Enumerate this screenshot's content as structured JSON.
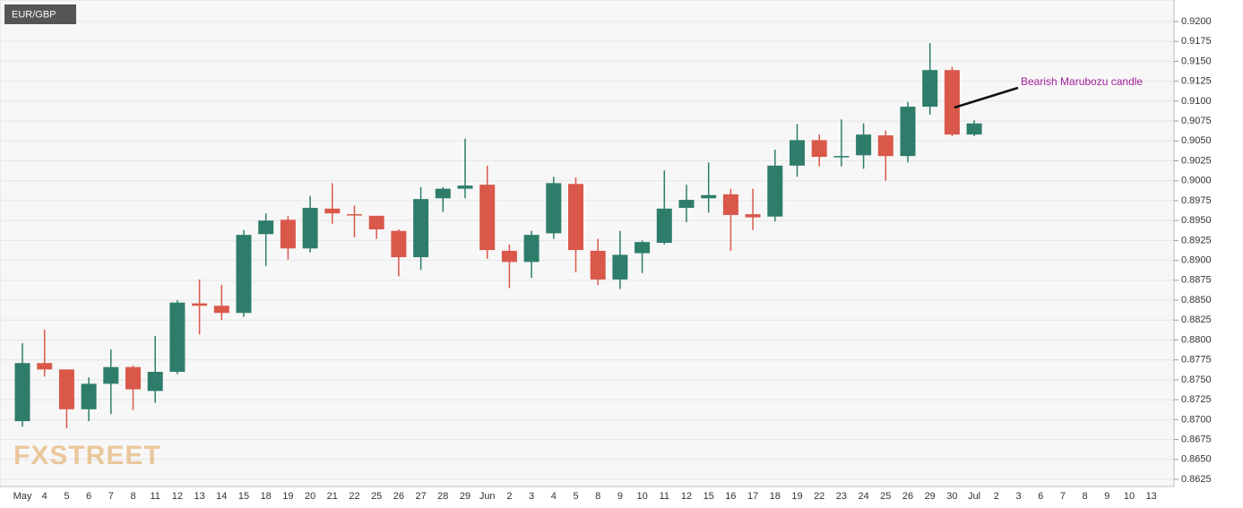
{
  "chart_data": {
    "type": "candlestick",
    "title": "EUR/GBP",
    "watermark": "FXSTREET",
    "annotation": "Bearish Marubozu candle",
    "categories": [
      "May",
      "4",
      "5",
      "6",
      "7",
      "8",
      "11",
      "12",
      "13",
      "14",
      "15",
      "18",
      "19",
      "20",
      "21",
      "22",
      "25",
      "26",
      "27",
      "28",
      "29",
      "Jun",
      "2",
      "3",
      "4",
      "5",
      "8",
      "9",
      "10",
      "11",
      "12",
      "15",
      "16",
      "17",
      "18",
      "19",
      "22",
      "23",
      "24",
      "25",
      "26",
      "29",
      "30",
      "Jul",
      "2",
      "3",
      "6",
      "7",
      "8",
      "9",
      "10",
      "13"
    ],
    "open": [
      0.8698,
      0.8771,
      0.8763,
      0.8713,
      0.8745,
      0.8766,
      0.8736,
      0.876,
      0.8846,
      0.8843,
      0.8834,
      0.8933,
      0.8951,
      0.8915,
      0.8965,
      0.8958,
      0.8956,
      0.8937,
      0.8904,
      0.8978,
      0.899,
      0.8995,
      0.8912,
      0.8898,
      0.8934,
      0.8996,
      0.8912,
      0.8876,
      0.8909,
      0.8922,
      0.8966,
      0.8978,
      0.8983,
      0.8958,
      0.8955,
      0.9019,
      0.9051,
      0.903,
      0.9032,
      0.9057,
      0.9031,
      0.9093,
      0.9139,
      0.9058,
      null,
      null,
      null,
      null,
      null,
      null,
      null,
      null
    ],
    "high": [
      0.8796,
      0.8813,
      0.8763,
      0.8753,
      0.8788,
      0.8768,
      0.8805,
      0.885,
      0.8876,
      0.8869,
      0.8938,
      0.8959,
      0.8956,
      0.8981,
      0.8997,
      0.8969,
      0.8956,
      0.8939,
      0.8992,
      0.8992,
      0.9053,
      0.9019,
      0.892,
      0.8937,
      0.9005,
      0.9004,
      0.8927,
      0.8937,
      0.8925,
      0.9013,
      0.8995,
      0.9023,
      0.899,
      0.899,
      0.9039,
      0.9071,
      0.9058,
      0.9077,
      0.9072,
      0.9063,
      0.9099,
      0.9173,
      0.9143,
      0.9076,
      null,
      null,
      null,
      null,
      null,
      null,
      null,
      null
    ],
    "low": [
      0.8691,
      0.8754,
      0.8689,
      0.8698,
      0.8707,
      0.8712,
      0.8721,
      0.8757,
      0.8807,
      0.8825,
      0.8829,
      0.8893,
      0.8901,
      0.891,
      0.8946,
      0.8929,
      0.8927,
      0.888,
      0.8888,
      0.8961,
      0.8978,
      0.8902,
      0.8865,
      0.8878,
      0.8927,
      0.8885,
      0.8869,
      0.8864,
      0.8884,
      0.892,
      0.8948,
      0.896,
      0.8912,
      0.8938,
      0.8949,
      0.9005,
      0.9018,
      0.9018,
      0.9015,
      0.9,
      0.9023,
      0.9083,
      0.9056,
      0.9056,
      null,
      null,
      null,
      null,
      null,
      null,
      null,
      null
    ],
    "close": [
      0.8771,
      0.8763,
      0.8713,
      0.8745,
      0.8766,
      0.8738,
      0.876,
      0.8847,
      0.8843,
      0.8834,
      0.8932,
      0.895,
      0.8915,
      0.8966,
      0.8959,
      0.8957,
      0.8939,
      0.8904,
      0.8977,
      0.899,
      0.8994,
      0.8913,
      0.8898,
      0.8932,
      0.8997,
      0.8913,
      0.8876,
      0.8907,
      0.8923,
      0.8965,
      0.8976,
      0.8982,
      0.8957,
      0.8954,
      0.9019,
      0.9051,
      0.903,
      0.9031,
      0.9058,
      0.9031,
      0.9093,
      0.9139,
      0.9058,
      0.9072,
      null,
      null,
      null,
      null,
      null,
      null,
      null,
      null
    ],
    "up_color": "#2e7d6b",
    "down_color": "#d9584a",
    "ylim": [
      0.8616,
      0.9227
    ],
    "yticks": [
      0.8625,
      {
        "value": 0.865,
        "label": "0.8650"
      },
      0.8675,
      {
        "value": 0.87,
        "label": "0.8700"
      },
      0.8725,
      {
        "value": 0.875,
        "label": "0.8750"
      },
      0.8775,
      {
        "value": 0.88,
        "label": "0.8800"
      },
      0.8825,
      {
        "value": 0.885,
        "label": "0.8850"
      },
      0.8875,
      {
        "value": 0.89,
        "label": "0.8900"
      },
      0.8925,
      {
        "value": 0.895,
        "label": "0.8950"
      },
      0.8975,
      {
        "value": 0.9,
        "label": "0.9000"
      },
      0.9025,
      {
        "value": 0.905,
        "label": "0.9050"
      },
      0.9075,
      {
        "value": 0.91,
        "label": "0.9100"
      },
      0.9125,
      {
        "value": 0.915,
        "label": "0.9150"
      },
      0.9175,
      {
        "value": 0.92,
        "label": "0.9200"
      }
    ],
    "grid": true
  }
}
